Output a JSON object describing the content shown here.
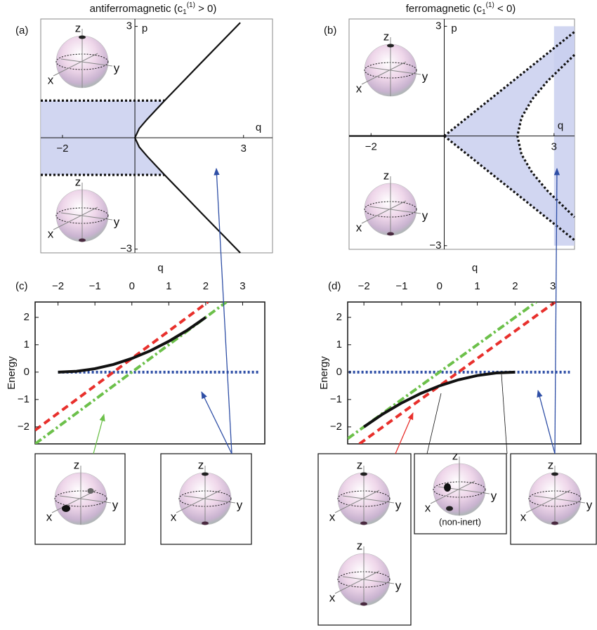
{
  "chart_data": [
    {
      "type": "phase",
      "panel_label": "(a)",
      "title_main": "antiferromagnetic (c",
      "title_sub": "1",
      "title_sup": "(1)",
      "title_end": " > 0)",
      "xlabel": "q",
      "ylabel": "p",
      "xlim": [
        -2.6,
        3.8
      ],
      "ylim": [
        -3.1,
        3.2
      ],
      "xticks": [
        {
          "value": -2,
          "label": "−2"
        },
        3
      ],
      "yticks": [
        {
          "value": -3,
          "label": "−3"
        },
        3
      ],
      "regions": [
        {
          "color": "#c9cfee",
          "x": [
            -2.6,
            0.82,
            0.34,
            0.12,
            0,
            0.12,
            0.34,
            0.82,
            -2.6
          ],
          "y": [
            1,
            1,
            0.5,
            0.25,
            0,
            -0.25,
            -0.5,
            -1,
            -1
          ]
        }
      ],
      "series": [
        {
          "color": "#111111",
          "style": "solid",
          "x": [
            2.91,
            1.81,
            0.82,
            0.34,
            0.12,
            0,
            0.12,
            0.34,
            0.82,
            1.81,
            2.91
          ],
          "values": [
            -3.1,
            -2,
            -1,
            -0.5,
            -0.25,
            0,
            0.25,
            0.5,
            1,
            2,
            3.1
          ]
        },
        {
          "color": "#111111",
          "style": "dotted",
          "x": [
            -2.6,
            0.82
          ],
          "values": [
            1,
            1
          ]
        },
        {
          "color": "#111111",
          "style": "dotted",
          "x": [
            -2.6,
            0.82
          ],
          "values": [
            -1,
            -1
          ]
        }
      ]
    },
    {
      "type": "phase",
      "panel_label": "(b)",
      "title_main": "ferromagnetic (c",
      "title_sub": "1",
      "title_sup": "(1)",
      "title_end": " < 0)",
      "xlabel": "q",
      "ylabel": "p",
      "xlim": [
        -2.6,
        3.56
      ],
      "ylim": [
        -3.1,
        3.2
      ],
      "xticks": [
        {
          "value": -2,
          "label": "−2"
        },
        3
      ],
      "yticks": [
        {
          "value": -3,
          "label": "−3"
        },
        3
      ],
      "regions": [
        {
          "color": "#c9cfee",
          "x": [
            0,
            3.56,
            3.56,
            2.82,
            2.4,
            2.11,
            2,
            2.11,
            2.4,
            2.82,
            3.56,
            3.56
          ],
          "y": [
            0,
            2.85,
            2.22,
            1.5,
            1,
            0.5,
            0,
            -0.5,
            -1,
            -1.5,
            -2.22,
            -2.85
          ]
        },
        {
          "color": "#c9cfee",
          "x": [
            3,
            3.56,
            3.56,
            3
          ],
          "y": [
            -3,
            -3,
            3,
            3
          ]
        }
      ],
      "series": [
        {
          "color": "#111111",
          "style": "solid",
          "x": [
            -2.6,
            0
          ],
          "values": [
            0,
            0
          ]
        },
        {
          "color": "#111111",
          "style": "dotted",
          "x": [
            0,
            3.56
          ],
          "values": [
            0,
            2.85
          ]
        },
        {
          "color": "#111111",
          "style": "dotted",
          "x": [
            0,
            3.56
          ],
          "values": [
            0,
            -2.85
          ]
        },
        {
          "color": "#111111",
          "style": "dotted",
          "x": [
            3.56,
            2.82,
            2.4,
            2.11,
            2,
            2.11,
            2.4,
            2.82,
            3.56
          ],
          "values": [
            2.22,
            1.5,
            1,
            0.5,
            0,
            -0.5,
            -1,
            -1.5,
            -2.22
          ]
        }
      ]
    },
    {
      "type": "line",
      "panel_label": "(c)",
      "xlabel": "q",
      "ylabel": "Energy",
      "xlim": [
        -2.62,
        3.6
      ],
      "ylim": [
        -2.62,
        2.56
      ],
      "xticks": [
        {
          "value": -2,
          "label": "−2"
        },
        {
          "value": -1,
          "label": "−1"
        },
        0,
        1,
        2,
        3
      ],
      "yticks": [
        {
          "value": -2,
          "label": "−2"
        },
        {
          "value": -1,
          "label": "−1"
        },
        0,
        1,
        2
      ],
      "series": [
        {
          "color": "#2f4fa6",
          "style": "dotted",
          "x": [
            -2,
            3.45
          ],
          "values": [
            0,
            0
          ]
        },
        {
          "color": "#e8302c",
          "style": "dashed",
          "x": [
            -2.62,
            2.06
          ],
          "values": [
            -2.12,
            2.56
          ]
        },
        {
          "color": "#6cc04a",
          "style": "dashdot",
          "x": [
            -2.62,
            2.56
          ],
          "values": [
            -2.62,
            2.56
          ]
        },
        {
          "color": "#111111",
          "style": "solid",
          "x": [
            -2,
            -1.5,
            -1,
            -0.5,
            0,
            0.5,
            1,
            1.5,
            2
          ],
          "values": [
            0,
            0.03,
            0.125,
            0.28,
            0.5,
            0.78,
            1.125,
            1.53,
            2
          ]
        }
      ]
    },
    {
      "type": "line",
      "panel_label": "(d)",
      "xlabel": "q",
      "ylabel": "Energy",
      "xlim": [
        -2.43,
        3.74
      ],
      "ylim": [
        -2.62,
        2.56
      ],
      "xticks": [
        {
          "value": -2,
          "label": "−2"
        },
        {
          "value": -1,
          "label": "−1"
        },
        0,
        1,
        2,
        3
      ],
      "yticks": [
        {
          "value": -2,
          "label": "−2"
        },
        {
          "value": -1,
          "label": "−1"
        },
        0,
        1,
        2
      ],
      "series": [
        {
          "color": "#2f4fa6",
          "style": "dotted",
          "x": [
            -2.4,
            3.45
          ],
          "values": [
            0,
            0
          ]
        },
        {
          "color": "#6cc04a",
          "style": "dashdot",
          "x": [
            -2.43,
            2.56
          ],
          "values": [
            -2.43,
            2.56
          ]
        },
        {
          "color": "#e8302c",
          "style": "dashed",
          "x": [
            -2.12,
            3.06
          ],
          "values": [
            -2.62,
            2.56
          ]
        },
        {
          "color": "#111111",
          "style": "solid",
          "x": [
            -2,
            -1.5,
            -1,
            -0.5,
            0,
            0.5,
            1,
            1.5,
            2
          ],
          "values": [
            -2,
            -1.53,
            -1.125,
            -0.78,
            -0.5,
            -0.28,
            -0.125,
            -0.03,
            0
          ]
        }
      ]
    }
  ],
  "sphere_axis_labels": {
    "x": "x",
    "y": "y",
    "z": "z"
  },
  "annotation": "(non-inert)"
}
